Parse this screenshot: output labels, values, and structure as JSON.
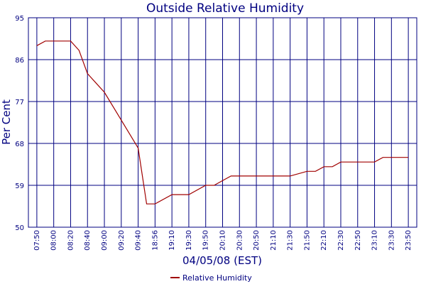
{
  "chart_data": {
    "type": "line",
    "title": "Outside Relative Humidity",
    "xlabel": "04/05/08 (EST)",
    "ylabel": "Per Cent",
    "ylim": [
      50,
      95
    ],
    "yticks": [
      50,
      59,
      68,
      77,
      86,
      95
    ],
    "categories": [
      "07:50",
      "08:00",
      "08:20",
      "08:40",
      "09:00",
      "09:20",
      "09:40",
      "18:56",
      "19:10",
      "19:30",
      "19:50",
      "20:10",
      "20:30",
      "20:50",
      "21:10",
      "21:30",
      "21:50",
      "22:10",
      "22:30",
      "22:50",
      "23:10",
      "23:30",
      "23:50"
    ],
    "grid": true,
    "legend_position": "bottom-center",
    "series": [
      {
        "name": "Relative Humidity",
        "color": "#a00000",
        "points": [
          [
            0,
            89
          ],
          [
            0.5,
            90
          ],
          [
            1,
            90
          ],
          [
            2,
            90
          ],
          [
            2.5,
            88
          ],
          [
            3,
            83
          ],
          [
            3.5,
            81
          ],
          [
            4,
            79
          ],
          [
            5,
            73
          ],
          [
            6,
            67
          ],
          [
            6.5,
            55
          ],
          [
            7,
            55
          ],
          [
            8,
            57
          ],
          [
            9,
            57
          ],
          [
            10,
            59
          ],
          [
            10.5,
            59
          ],
          [
            11,
            60
          ],
          [
            11.5,
            61
          ],
          [
            12,
            61
          ],
          [
            13,
            61
          ],
          [
            14,
            61
          ],
          [
            15,
            61
          ],
          [
            16,
            62
          ],
          [
            16.5,
            62
          ],
          [
            17,
            63
          ],
          [
            17.5,
            63
          ],
          [
            18,
            64
          ],
          [
            19,
            64
          ],
          [
            20,
            64
          ],
          [
            20.5,
            65
          ],
          [
            21,
            65
          ],
          [
            22,
            65
          ]
        ]
      }
    ]
  }
}
